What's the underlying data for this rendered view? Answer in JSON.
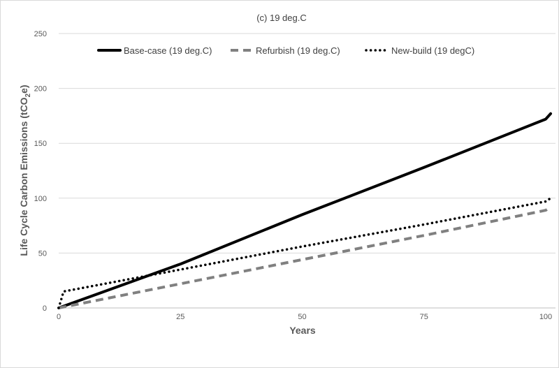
{
  "chart_data": {
    "type": "line",
    "title": "(c) 19 deg.C",
    "xlabel": "Years",
    "ylabel": "Life Cycle Carbon Emissions (tCO2e)",
    "xlim": [
      0,
      101
    ],
    "ylim": [
      0,
      250
    ],
    "xticks": [
      0,
      25,
      50,
      75,
      100
    ],
    "yticks": [
      0,
      50,
      100,
      150,
      200,
      250
    ],
    "grid": "horizontal",
    "legend_position": "top",
    "series": [
      {
        "name": "Base-case (19 deg.C)",
        "style": "solid",
        "color": "#000000",
        "x": [
          0,
          25,
          50,
          75,
          100,
          101
        ],
        "y": [
          0,
          40,
          85,
          128,
          172,
          177
        ]
      },
      {
        "name": "Refurbish (19 deg.C)",
        "style": "dashed",
        "color": "#808080",
        "x": [
          0,
          25,
          50,
          75,
          100,
          101
        ],
        "y": [
          0,
          22,
          44,
          66,
          89,
          92
        ]
      },
      {
        "name": "New-build (19 degC)",
        "style": "dotted",
        "color": "#000000",
        "x": [
          0,
          1,
          25,
          50,
          75,
          100,
          101
        ],
        "y": [
          0,
          15,
          35,
          56,
          76,
          97,
          100
        ]
      }
    ]
  }
}
